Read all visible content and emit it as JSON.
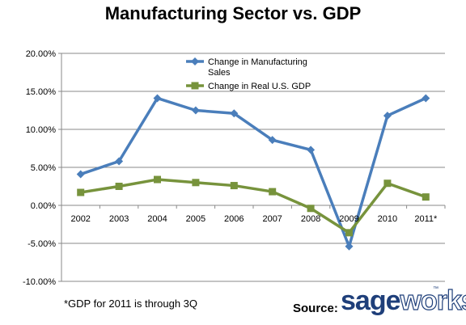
{
  "chart_data": {
    "type": "line",
    "title": "Manufacturing Sector vs. GDP",
    "categories": [
      "2002",
      "2003",
      "2004",
      "2005",
      "2006",
      "2007",
      "2008",
      "2009",
      "2010",
      "2011*"
    ],
    "series": [
      {
        "name": "Change in Manufacturing Sales",
        "color": "#4a7ebb",
        "marker": "diamond",
        "values": [
          4.1,
          5.8,
          14.1,
          12.5,
          12.1,
          8.6,
          7.3,
          -5.4,
          11.8,
          14.1
        ]
      },
      {
        "name": "Change in Real U.S. GDP",
        "color": "#77933c",
        "marker": "square",
        "values": [
          1.7,
          2.5,
          3.4,
          3.0,
          2.6,
          1.8,
          -0.4,
          -3.6,
          2.9,
          1.1
        ]
      }
    ],
    "yticks": [
      "20.00%",
      "15.00%",
      "10.00%",
      "5.00%",
      "0.00%",
      "-5.00%",
      "-10.00%"
    ],
    "ylim": [
      -10,
      20
    ],
    "xlabel": "",
    "ylabel": "",
    "grid": true,
    "legend": "top-center",
    "legend_labels": {
      "manufacturing_line1": "Change in  Manufacturing",
      "manufacturing_line2": "Sales",
      "gdp": "Change in  Real U.S. GDP"
    },
    "footnote": "*GDP for 2011 is through 3Q"
  },
  "source": {
    "label": "Source:",
    "brand_part1": "sage",
    "brand_part2": "works",
    "brand_mark": "™"
  }
}
